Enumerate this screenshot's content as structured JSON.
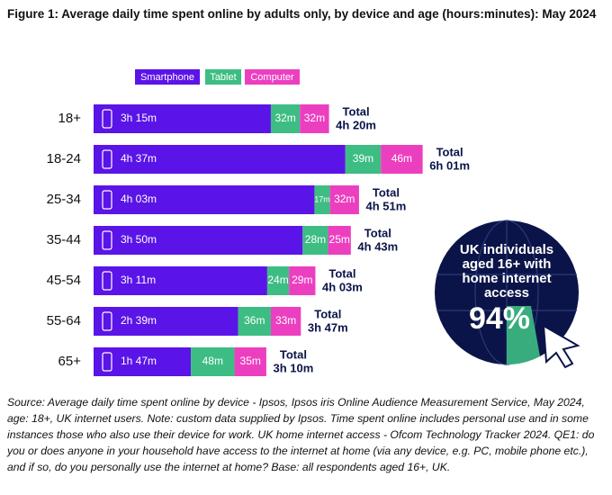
{
  "chart_data": {
    "type": "stacked-bar-horizontal",
    "title": "Figure 1: Average daily time spent online by adults only, by device and age (hours:minutes): May 2024",
    "categories": [
      "18+",
      "18-24",
      "25-34",
      "35-44",
      "45-54",
      "55-64",
      "65+"
    ],
    "series": [
      {
        "name": "Smartphone",
        "color": "#5b14e8",
        "values": [
          195,
          277,
          243,
          230,
          191,
          159,
          107
        ],
        "value_labels": [
          "3h 15m",
          "4h 37m",
          "4h 03m",
          "3h 50m",
          "3h 11m",
          "2h 39m",
          "1h 47m"
        ]
      },
      {
        "name": "Tablet",
        "color": "#3dbd83",
        "values": [
          32,
          39,
          17,
          28,
          24,
          36,
          48
        ],
        "value_labels": [
          "32m",
          "39m",
          "17m",
          "28m",
          "24m",
          "36m",
          "48m"
        ]
      },
      {
        "name": "Computer",
        "color": "#ec3fc0",
        "values": [
          32,
          46,
          32,
          25,
          29,
          33,
          35
        ],
        "value_labels": [
          "32m",
          "46m",
          "32m",
          "25m",
          "29m",
          "33m",
          "35m"
        ]
      }
    ],
    "total_word": "Total",
    "total_labels": [
      "4h 20m",
      "6h 01m",
      "4h 51m",
      "4h 43m",
      "4h 03m",
      "3h 47m",
      "3h 10m"
    ],
    "source": "Source: Average daily time spent online by device - Ipsos, Ipsos iris Online Audience Measurement Service, May 2024, age: 18+, UK internet users. Note: custom data supplied by Ipsos. Time spent online includes personal use and in some instances those who also use their device for work. UK home internet access - Ofcom Technology Tracker 2024. QE1: do you or does anyone in your household have access to the internet at home (via any device, e.g. PC, mobile phone etc.), and if so, do you personally use the internet at home? Base: all respondents aged 16+, UK."
  },
  "callout": {
    "text": "UK individuals aged 16+ with home internet access",
    "value_label": "94%"
  }
}
